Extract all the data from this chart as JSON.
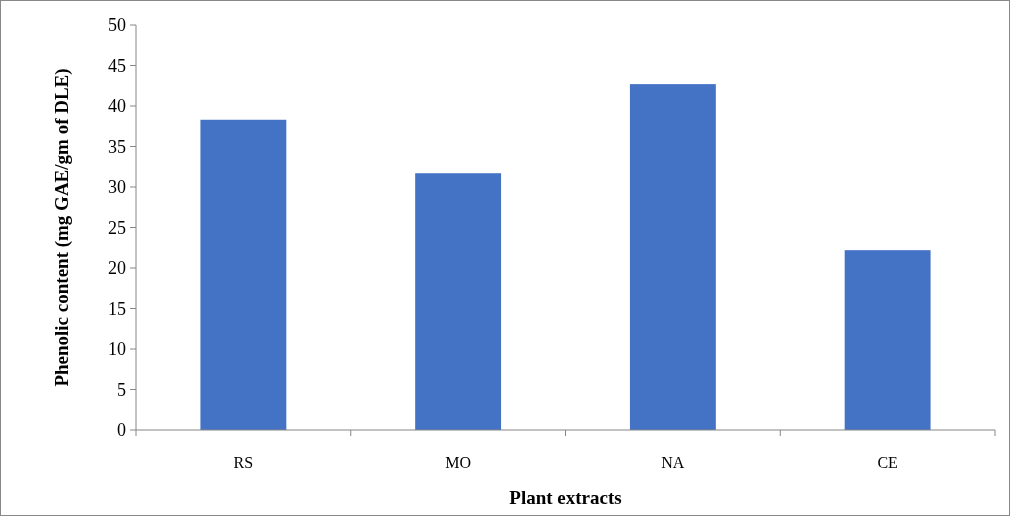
{
  "chart_data": {
    "type": "bar",
    "xlabel": "Plant extracts",
    "ylabel": "Phenolic content (mg GAE/gm of DLE)",
    "categories": [
      "RS",
      "MO",
      "NA",
      "CE"
    ],
    "values": [
      38.3,
      31.7,
      42.7,
      22.2
    ],
    "color": "#4472c4",
    "ylim": [
      0,
      50
    ],
    "yticks": [
      0,
      5,
      10,
      15,
      20,
      25,
      30,
      35,
      40,
      45,
      50
    ],
    "grid": false
  }
}
